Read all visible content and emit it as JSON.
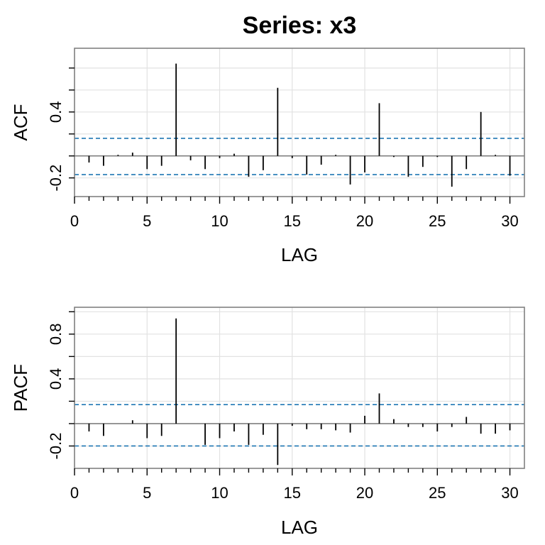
{
  "title": "Series:  x3",
  "chart_data": [
    {
      "type": "bar",
      "panel": "acf",
      "ylabel": "ACF",
      "xlabel": "LAG",
      "xlim": [
        0,
        31
      ],
      "ylim": [
        -0.37,
        0.98
      ],
      "x_ticks": [
        0,
        5,
        10,
        15,
        20,
        25,
        30
      ],
      "y_ticks": [
        -0.2,
        0.4
      ],
      "y_tick_labels": [
        "-0.2",
        "0.4"
      ],
      "y_minor_ticks": [
        -0.2,
        0,
        0.2,
        0.4,
        0.6,
        0.8
      ],
      "grid": true,
      "confidence_band": [
        -0.17,
        0.16
      ],
      "lags": [
        1,
        2,
        3,
        4,
        5,
        6,
        7,
        8,
        9,
        10,
        11,
        12,
        13,
        14,
        15,
        16,
        17,
        18,
        19,
        20,
        21,
        22,
        23,
        24,
        25,
        26,
        27,
        28,
        29,
        30
      ],
      "values": [
        -0.06,
        -0.09,
        0.01,
        0.03,
        -0.12,
        -0.09,
        0.84,
        -0.04,
        -0.12,
        -0.02,
        0.02,
        -0.19,
        -0.13,
        0.62,
        -0.02,
        -0.17,
        -0.08,
        0.01,
        -0.26,
        -0.15,
        0.48,
        -0.01,
        -0.19,
        -0.1,
        -0.01,
        -0.28,
        -0.12,
        0.4,
        0.01,
        -0.18
      ]
    },
    {
      "type": "bar",
      "panel": "pacf",
      "ylabel": "PACF",
      "xlabel": "LAG",
      "xlim": [
        0,
        31
      ],
      "ylim": [
        -0.4,
        1.04
      ],
      "x_ticks": [
        0,
        5,
        10,
        15,
        20,
        25,
        30
      ],
      "y_ticks": [
        -0.2,
        0.4,
        0.8
      ],
      "y_tick_labels": [
        "-0.2",
        "0.4",
        "0.8"
      ],
      "y_minor_ticks": [
        -0.2,
        0,
        0.2,
        0.4,
        0.6,
        0.8,
        1.0
      ],
      "grid": true,
      "confidence_band": [
        -0.2,
        0.17
      ],
      "lags": [
        1,
        2,
        3,
        4,
        5,
        6,
        7,
        8,
        9,
        10,
        11,
        12,
        13,
        14,
        15,
        16,
        17,
        18,
        19,
        20,
        21,
        22,
        23,
        24,
        25,
        26,
        27,
        28,
        29,
        30
      ],
      "values": [
        -0.07,
        -0.11,
        0,
        0.03,
        -0.13,
        -0.11,
        0.94,
        0,
        -0.19,
        -0.13,
        -0.07,
        -0.19,
        -0.1,
        -0.37,
        -0.02,
        -0.05,
        -0.05,
        -0.06,
        -0.08,
        0.07,
        0.27,
        0.04,
        -0.03,
        -0.03,
        -0.07,
        -0.03,
        0.06,
        -0.09,
        -0.09,
        -0.06
      ]
    }
  ]
}
